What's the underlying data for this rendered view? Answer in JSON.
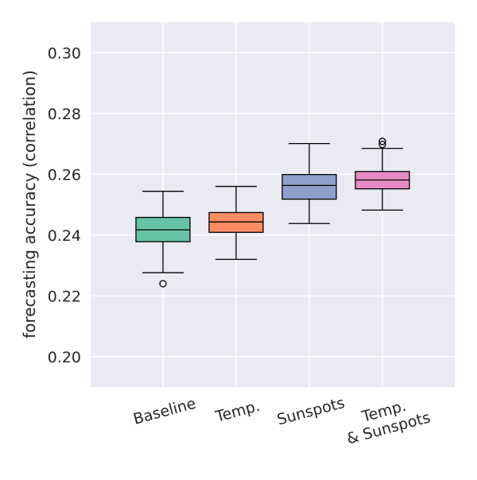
{
  "chart_data": {
    "type": "box",
    "title": "",
    "xlabel": "",
    "ylabel": "forecasting accuracy (correlation)",
    "ylim": [
      0.19,
      0.31
    ],
    "yticks": [
      "0.20",
      "0.22",
      "0.24",
      "0.26",
      "0.28",
      "0.30"
    ],
    "grid": true,
    "categories": [
      "Baseline",
      "Temp.",
      "Sunspots",
      "Temp.\n& Sunspots"
    ],
    "boxes": [
      {
        "category": "Baseline",
        "whisker_low": 0.2276,
        "q1": 0.2378,
        "median": 0.2417,
        "q3": 0.2458,
        "whisker_high": 0.2544,
        "outliers": [
          0.224
        ],
        "color": "#66c2a5"
      },
      {
        "category": "Temp.",
        "whisker_low": 0.232,
        "q1": 0.2409,
        "median": 0.2443,
        "q3": 0.2474,
        "whisker_high": 0.256,
        "outliers": [],
        "color": "#fc8d62"
      },
      {
        "category": "Sunspots",
        "whisker_low": 0.2438,
        "q1": 0.2518,
        "median": 0.2563,
        "q3": 0.2599,
        "whisker_high": 0.2701,
        "outliers": [],
        "color": "#8da0cb"
      },
      {
        "category": "Temp. & Sunspots",
        "whisker_low": 0.2482,
        "q1": 0.2552,
        "median": 0.2581,
        "q3": 0.2609,
        "whisker_high": 0.2685,
        "outliers": [
          0.2698,
          0.2708
        ],
        "color": "#e78ac3"
      }
    ],
    "background_color": "#eaeaf2",
    "grid_color": "#ffffff"
  }
}
